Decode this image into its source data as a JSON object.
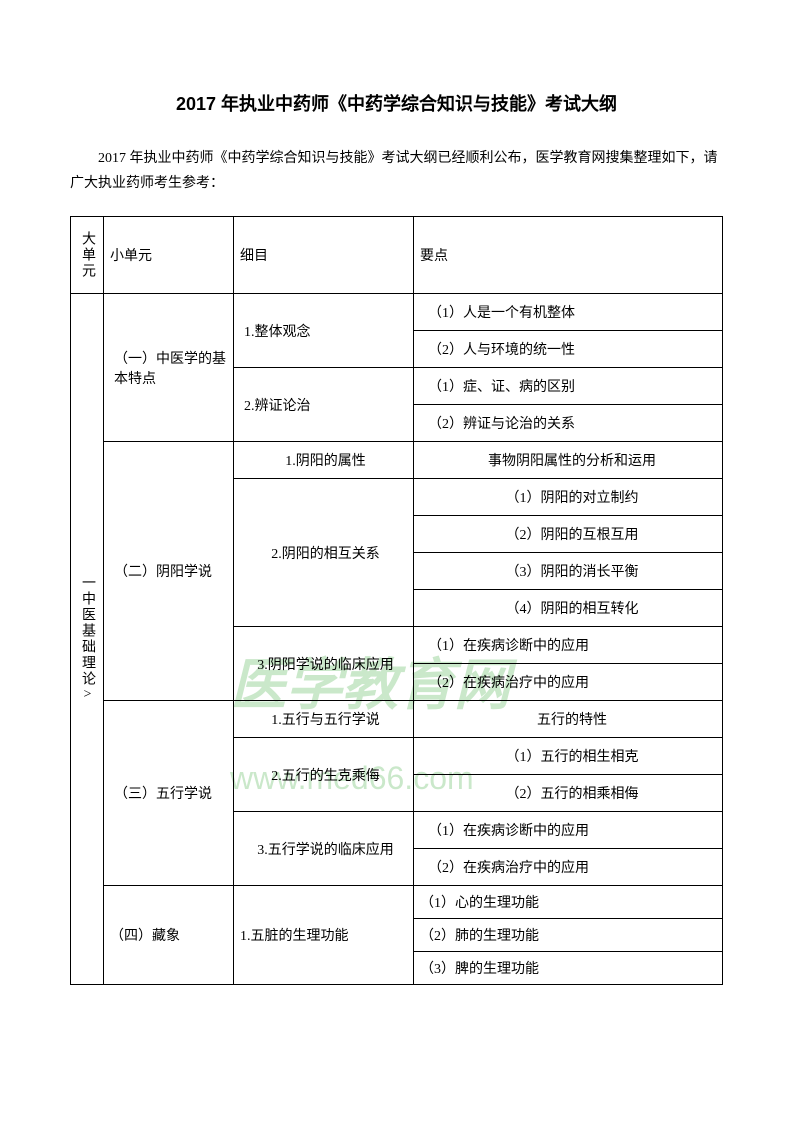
{
  "title": "2017 年执业中药师《中药学综合知识与技能》考试大纲",
  "intro": "2017 年执业中药师《中药学综合知识与技能》考试大纲已经顺利公布，医学教育网搜集整理如下，请广大执业药师考生参考：",
  "watermark1": "医学教育网",
  "watermark2": "www.med66.com",
  "headers": {
    "col1": "大单元",
    "col2": "小单元",
    "col3": "细目",
    "col4": "要点"
  },
  "unit1": "一中医基础理论>",
  "s1": {
    "name": "（一）中医学的基本特点",
    "d1": "1.整体观念",
    "d2": "2.辨证论治",
    "p1": "（1）人是一个有机整体",
    "p2": "（2）人与环境的统一性",
    "p3": "（1）症、证、病的区别",
    "p4": "（2）辨证与论治的关系"
  },
  "s2": {
    "name": "（二）阴阳学说",
    "d1": "1.阴阳的属性",
    "d2": "2.阴阳的相互关系",
    "d3": "3.阴阳学说的临床应用",
    "p1": "事物阴阳属性的分析和运用",
    "p2": "（1）阴阳的对立制约",
    "p3": "（2）阴阳的互根互用",
    "p4": "（3）阴阳的消长平衡",
    "p5": "（4）阴阳的相互转化",
    "p6": "（1）在疾病诊断中的应用",
    "p7": "（2）在疾病治疗中的应用"
  },
  "s3": {
    "name": "（三）五行学说",
    "d1": "1.五行与五行学说",
    "d2": "2.五行的生克乘侮",
    "d3": "3.五行学说的临床应用",
    "p1": "五行的特性",
    "p2": "（1）五行的相生相克",
    "p3": "（2）五行的相乘相侮",
    "p4": "（1）在疾病诊断中的应用",
    "p5": "（2）在疾病治疗中的应用"
  },
  "s4": {
    "name": "（四）藏象",
    "d1": "1.五脏的生理功能",
    "p1": "（1）心的生理功能",
    "p2": "（2）肺的生理功能",
    "p3": "（3）脾的生理功能"
  }
}
